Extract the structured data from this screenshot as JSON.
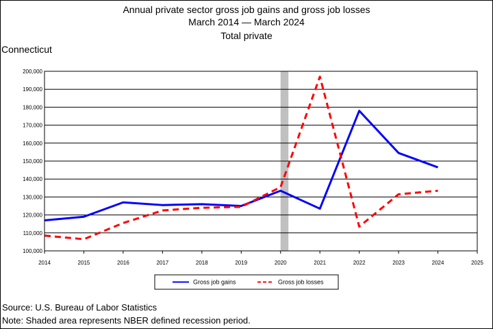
{
  "title": {
    "line1": "Annual private sector gross job gains and gross job losses",
    "line2": "March 2014 — March 2024",
    "line3": "Total private"
  },
  "region": "Connecticut",
  "source": "Source: U.S. Bureau of Labor Statistics",
  "note": "Note: Shaded area represents NBER defined recession period.",
  "colors": {
    "gains": "#0000ff",
    "losses": "#ff0000",
    "recession": "#c0c0c0",
    "axis": "#000000"
  },
  "chart_data": {
    "type": "line",
    "xlim": [
      2014,
      2025
    ],
    "ylim": [
      100000,
      200000
    ],
    "x_ticks": [
      "2014",
      "2015",
      "2016",
      "2017",
      "2018",
      "2019",
      "2020",
      "2021",
      "2022",
      "2023",
      "2024",
      "2025"
    ],
    "y_ticks": [
      "100,000",
      "110,000",
      "120,000",
      "130,000",
      "140,000",
      "150,000",
      "160,000",
      "170,000",
      "180,000",
      "190,000",
      "200,000"
    ],
    "grid": "horizontal",
    "recession": [
      2020,
      2020.2
    ],
    "legend_position": "bottom",
    "x": [
      2014,
      2015,
      2016,
      2017,
      2018,
      2019,
      2020,
      2021,
      2022,
      2023,
      2024
    ],
    "series": [
      {
        "name": "Gross job gains",
        "style": "solid",
        "color": "#0000ff",
        "values": [
          117000,
          119000,
          127000,
          125500,
          126000,
          125000,
          133500,
          123500,
          178000,
          154500,
          146500
        ]
      },
      {
        "name": "Gross job losses",
        "style": "dashed",
        "color": "#ff0000",
        "values": [
          108500,
          106500,
          115500,
          122500,
          124000,
          124500,
          135500,
          197000,
          113500,
          131500,
          133500
        ]
      }
    ]
  }
}
